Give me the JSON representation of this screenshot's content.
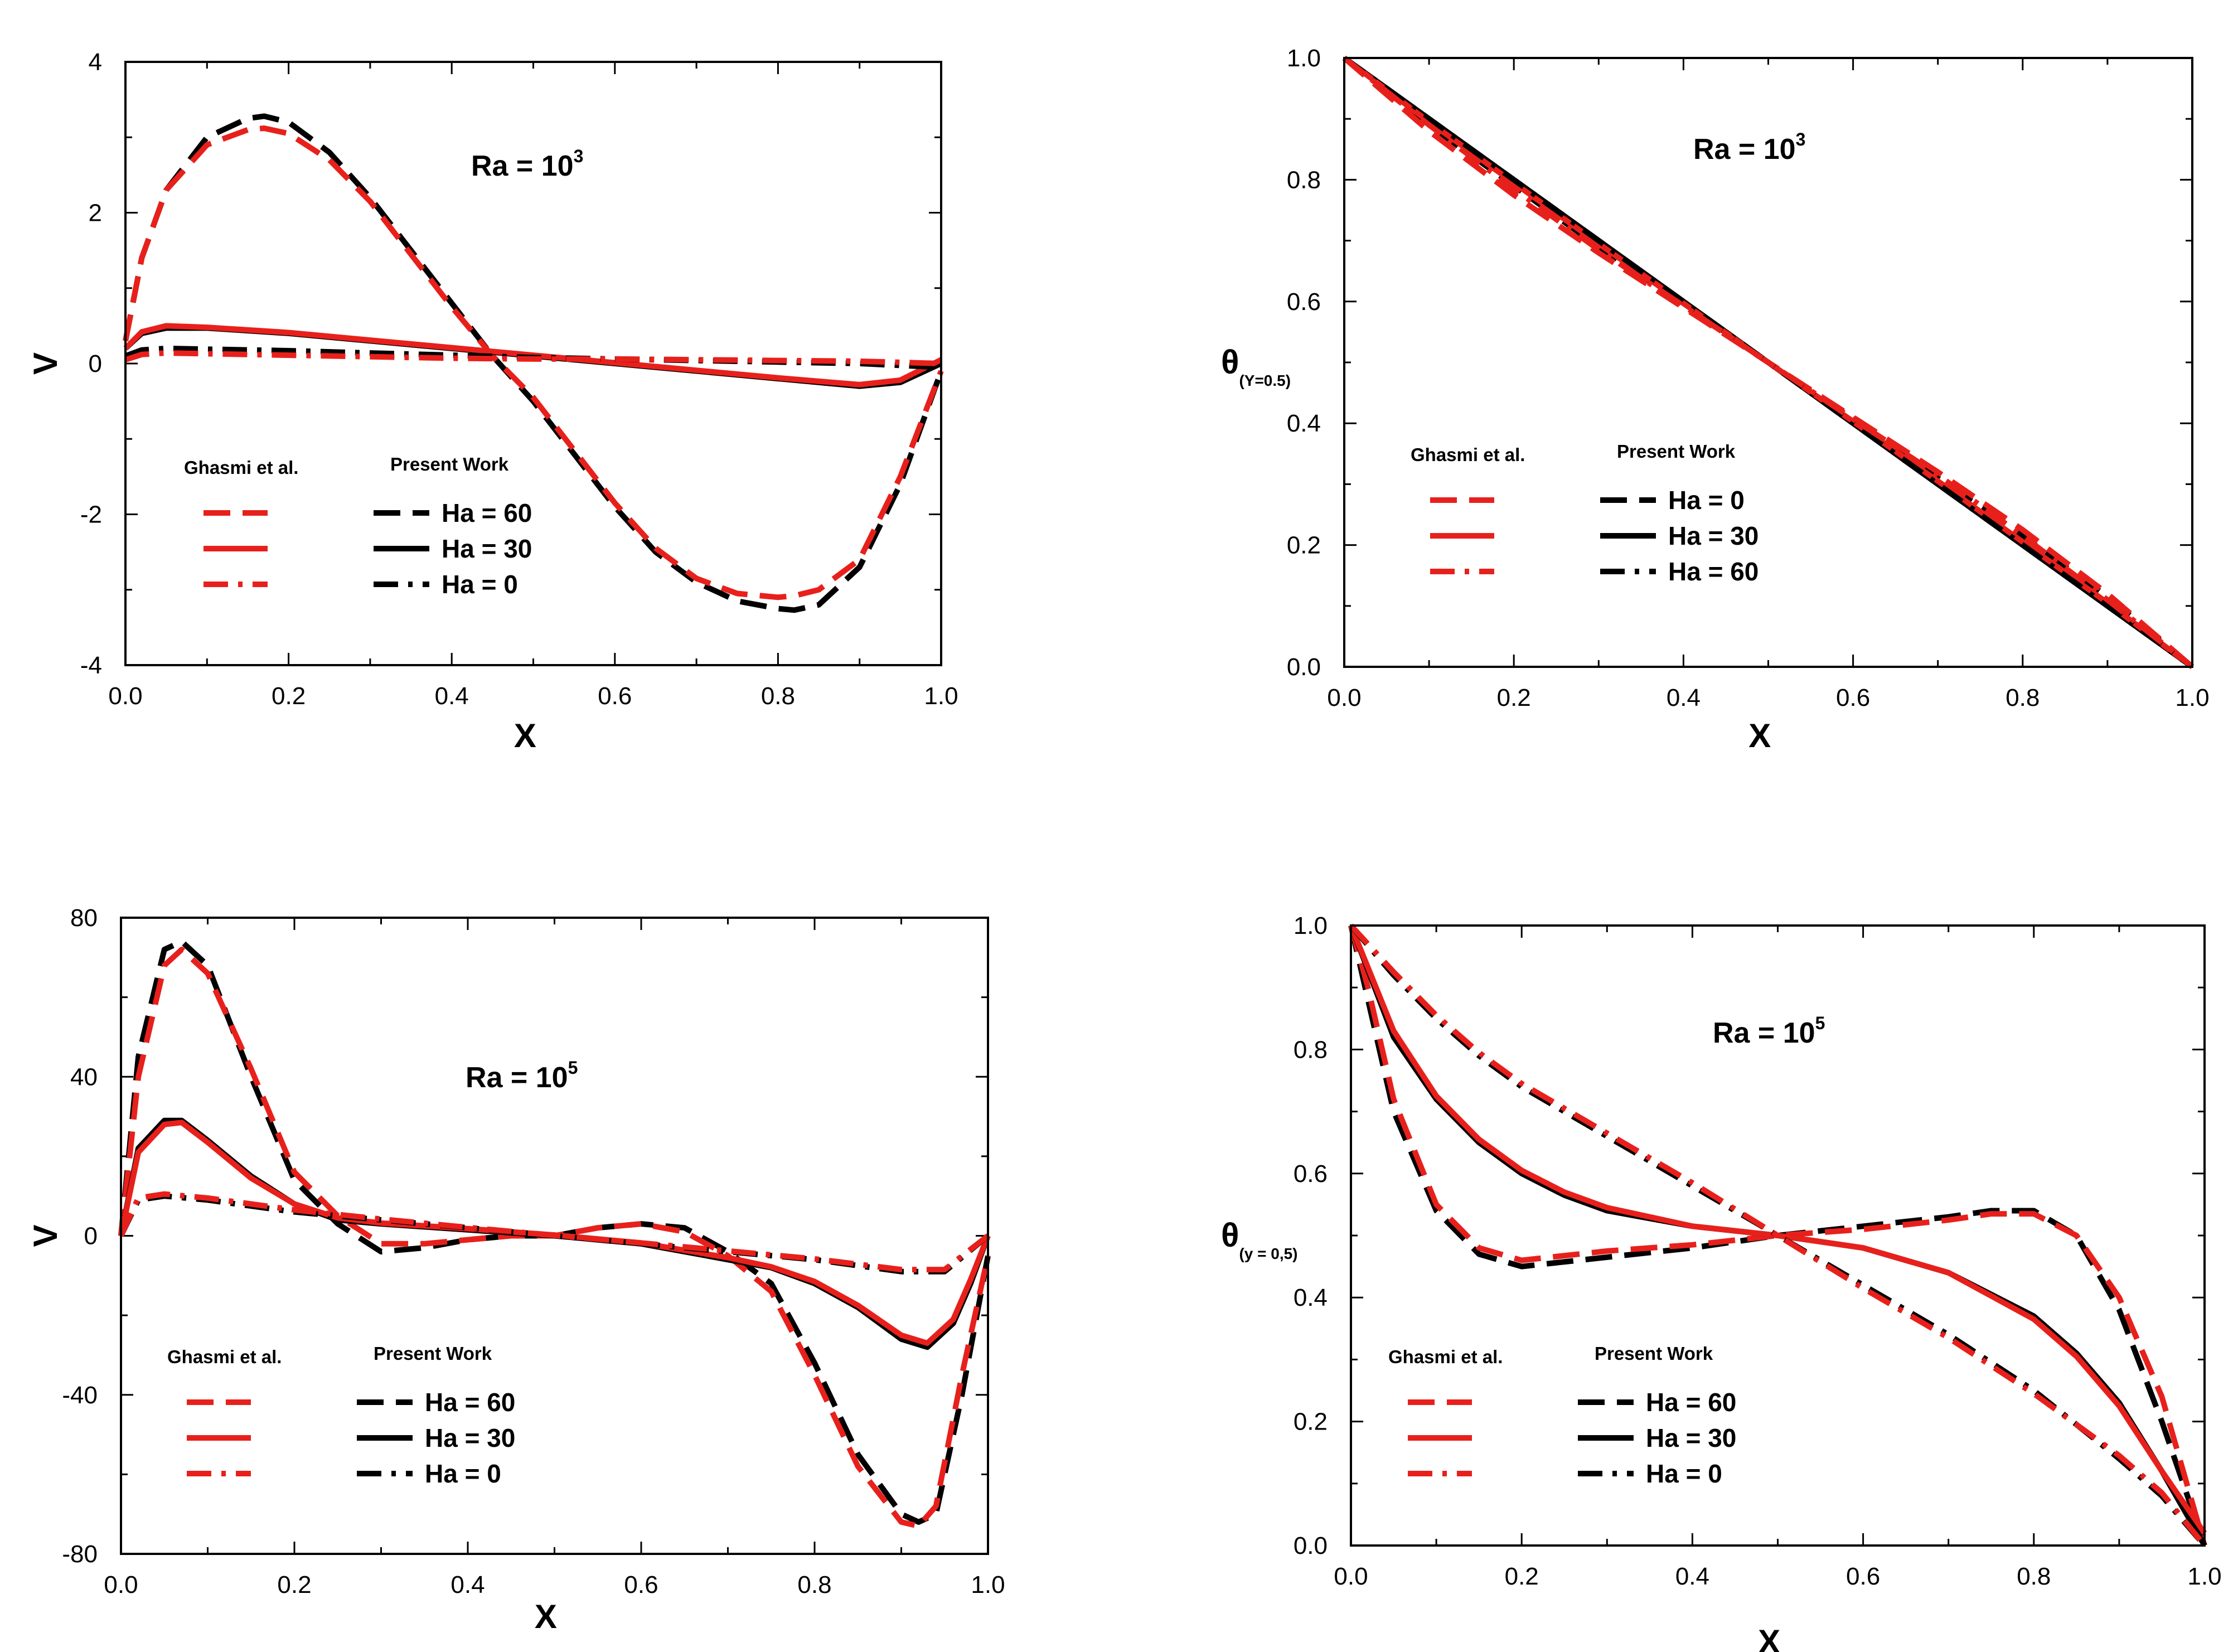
{
  "colors": {
    "reference": "#e8201c",
    "present": "#000000"
  },
  "chart_data": [
    {
      "id": "v_ra1e3",
      "type": "line",
      "annotation": {
        "base": "Ra = 10",
        "exp": "3"
      },
      "xlabel": "X",
      "ylabel": "V",
      "xlim": [
        0,
        1
      ],
      "ylim": [
        -4,
        4
      ],
      "xticks": [
        "0.0",
        "0.2",
        "0.4",
        "0.6",
        "0.8",
        "1.0"
      ],
      "yticks": [
        "-4",
        "-2",
        "0",
        "2",
        "4"
      ],
      "legend": {
        "ref_title": "Ghasmi et al.",
        "present_title": "Present Work",
        "entries": [
          "Ha = 60",
          "Ha = 30",
          "Ha = 0"
        ],
        "styles": [
          "dash",
          "solid",
          "dashdot"
        ]
      },
      "series": [
        {
          "name": "Ha = 60",
          "style": "dash",
          "x": [
            0,
            0.02,
            0.05,
            0.1,
            0.15,
            0.17,
            0.2,
            0.25,
            0.3,
            0.35,
            0.4,
            0.45,
            0.5,
            0.55,
            0.6,
            0.65,
            0.7,
            0.75,
            0.8,
            0.82,
            0.85,
            0.9,
            0.95,
            1.0
          ],
          "present": [
            0.3,
            1.4,
            2.3,
            3.0,
            3.25,
            3.28,
            3.2,
            2.8,
            2.2,
            1.5,
            0.8,
            0.1,
            -0.5,
            -1.2,
            -1.9,
            -2.5,
            -2.9,
            -3.15,
            -3.25,
            -3.27,
            -3.2,
            -2.7,
            -1.6,
            -0.1
          ],
          "reference": [
            0.3,
            1.4,
            2.3,
            2.9,
            3.1,
            3.12,
            3.05,
            2.7,
            2.15,
            1.45,
            0.75,
            0.1,
            -0.45,
            -1.15,
            -1.85,
            -2.45,
            -2.85,
            -3.05,
            -3.1,
            -3.08,
            -3.0,
            -2.6,
            -1.5,
            -0.1
          ]
        },
        {
          "name": "Ha = 30",
          "style": "solid",
          "x": [
            0,
            0.02,
            0.05,
            0.1,
            0.2,
            0.3,
            0.4,
            0.5,
            0.6,
            0.7,
            0.8,
            0.9,
            0.95,
            1.0
          ],
          "present": [
            0.2,
            0.4,
            0.47,
            0.47,
            0.4,
            0.3,
            0.2,
            0.1,
            0.0,
            -0.1,
            -0.2,
            -0.3,
            -0.25,
            0.0
          ],
          "reference": [
            0.2,
            0.42,
            0.5,
            0.48,
            0.41,
            0.31,
            0.21,
            0.11,
            0.01,
            -0.09,
            -0.19,
            -0.28,
            -0.22,
            0.05
          ]
        },
        {
          "name": "Ha = 0",
          "style": "dashdot",
          "x": [
            0,
            0.02,
            0.05,
            0.1,
            0.2,
            0.3,
            0.4,
            0.5,
            0.6,
            0.7,
            0.8,
            0.9,
            1.0
          ],
          "present": [
            0.1,
            0.18,
            0.2,
            0.19,
            0.17,
            0.14,
            0.11,
            0.08,
            0.06,
            0.04,
            0.02,
            0.0,
            -0.05
          ],
          "reference": [
            0.05,
            0.12,
            0.14,
            0.13,
            0.11,
            0.09,
            0.07,
            0.06,
            0.06,
            0.05,
            0.04,
            0.03,
            0.0
          ]
        }
      ]
    },
    {
      "id": "theta_ra1e3",
      "type": "line",
      "annotation": {
        "base": "Ra = 10",
        "exp": "3"
      },
      "xlabel": "X",
      "ylabel": "θ",
      "ylabel_sub": "(Y=0.5)",
      "xlim": [
        0,
        1
      ],
      "ylim": [
        0,
        1
      ],
      "xticks": [
        "0.0",
        "0.2",
        "0.4",
        "0.6",
        "0.8",
        "1.0"
      ],
      "yticks": [
        "0.0",
        "0.2",
        "0.4",
        "0.6",
        "0.8",
        "1.0"
      ],
      "legend": {
        "ref_title": "Ghasmi et al.",
        "present_title": "Present Work",
        "entries": [
          "Ha = 0",
          "Ha = 30",
          "Ha = 60"
        ],
        "styles": [
          "dash",
          "solid",
          "dashdot"
        ]
      },
      "series": [
        {
          "name": "Ha = 0",
          "style": "dash",
          "x": [
            0,
            0.1,
            0.2,
            0.3,
            0.4,
            0.5,
            0.6,
            0.7,
            0.8,
            0.9,
            1.0
          ],
          "present": [
            1.0,
            0.89,
            0.79,
            0.69,
            0.595,
            0.5,
            0.405,
            0.31,
            0.215,
            0.115,
            0.0
          ],
          "reference": [
            1.0,
            0.88,
            0.775,
            0.68,
            0.59,
            0.5,
            0.41,
            0.32,
            0.225,
            0.12,
            0.0
          ]
        },
        {
          "name": "Ha = 30",
          "style": "solid",
          "x": [
            0,
            0.1,
            0.2,
            0.3,
            0.4,
            0.5,
            0.6,
            0.7,
            0.8,
            0.9,
            1.0
          ],
          "present": [
            1.0,
            0.9,
            0.8,
            0.7,
            0.6,
            0.5,
            0.4,
            0.3,
            0.2,
            0.1,
            0.0
          ],
          "reference": [
            1.0,
            0.895,
            0.795,
            0.695,
            0.597,
            0.5,
            0.403,
            0.305,
            0.205,
            0.105,
            0.0
          ]
        },
        {
          "name": "Ha = 60",
          "style": "dashdot",
          "x": [
            0,
            0.1,
            0.2,
            0.3,
            0.4,
            0.5,
            0.6,
            0.7,
            0.8,
            0.9,
            1.0
          ],
          "present": [
            1.0,
            0.9,
            0.8,
            0.7,
            0.6,
            0.5,
            0.4,
            0.3,
            0.2,
            0.1,
            0.0
          ],
          "reference": [
            1.0,
            0.89,
            0.785,
            0.685,
            0.593,
            0.5,
            0.407,
            0.315,
            0.215,
            0.11,
            0.0
          ]
        }
      ]
    },
    {
      "id": "v_ra1e5",
      "type": "line",
      "annotation": {
        "base": "Ra = 10",
        "exp": "5"
      },
      "xlabel": "X",
      "ylabel": "V",
      "xlim": [
        0,
        1
      ],
      "ylim": [
        -80,
        80
      ],
      "xticks": [
        "0.0",
        "0.2",
        "0.4",
        "0.6",
        "0.8",
        "1.0"
      ],
      "yticks": [
        "-80",
        "-40",
        "0",
        "40",
        "80"
      ],
      "legend": {
        "ref_title": "Ghasmi et al.",
        "present_title": "Present Work",
        "entries": [
          "Ha = 60",
          "Ha = 30",
          "Ha = 0"
        ],
        "styles": [
          "dash",
          "solid",
          "dashdot"
        ]
      },
      "series": [
        {
          "name": "Ha = 60",
          "style": "dash",
          "x": [
            0,
            0.02,
            0.05,
            0.07,
            0.1,
            0.15,
            0.2,
            0.25,
            0.3,
            0.35,
            0.4,
            0.45,
            0.5,
            0.55,
            0.6,
            0.65,
            0.7,
            0.75,
            0.8,
            0.85,
            0.9,
            0.92,
            0.94,
            0.97,
            1.0
          ],
          "present": [
            0,
            45,
            72,
            74,
            68,
            40,
            14,
            3,
            -4,
            -3,
            -1,
            0,
            0,
            2,
            3,
            2,
            -4,
            -12,
            -32,
            -55,
            -70,
            -72,
            -70,
            -40,
            -5
          ],
          "reference": [
            0,
            40,
            68,
            72,
            66,
            42,
            16,
            5,
            -2,
            -2,
            -1,
            0,
            0,
            2,
            3,
            1,
            -5,
            -14,
            -35,
            -58,
            -72,
            -73,
            -68,
            -35,
            -5
          ]
        },
        {
          "name": "Ha = 30",
          "style": "solid",
          "x": [
            0,
            0.02,
            0.05,
            0.07,
            0.1,
            0.15,
            0.2,
            0.25,
            0.3,
            0.4,
            0.5,
            0.6,
            0.7,
            0.75,
            0.8,
            0.85,
            0.9,
            0.93,
            0.96,
            0.98,
            1.0
          ],
          "present": [
            0,
            22,
            29,
            29,
            24,
            15,
            8,
            4,
            3,
            1.5,
            0,
            -2,
            -6,
            -8,
            -12,
            -18,
            -26,
            -28,
            -22,
            -12,
            0
          ],
          "reference": [
            0,
            21,
            28,
            28.5,
            23.5,
            14.5,
            8,
            4.5,
            3.2,
            1.8,
            0.2,
            -1.8,
            -5.5,
            -7.8,
            -11.5,
            -17.5,
            -25,
            -27,
            -21,
            -11,
            0
          ]
        },
        {
          "name": "Ha = 0",
          "style": "dashdot",
          "x": [
            0,
            0.02,
            0.05,
            0.1,
            0.2,
            0.3,
            0.4,
            0.5,
            0.6,
            0.7,
            0.8,
            0.9,
            0.95,
            1.0
          ],
          "present": [
            0,
            9,
            10,
            9,
            6,
            4,
            2,
            0,
            -2,
            -4,
            -6,
            -9,
            -9,
            0
          ],
          "reference": [
            0,
            9.5,
            10.5,
            9.5,
            6.5,
            4.2,
            2.1,
            0.1,
            -1.8,
            -3.8,
            -5.8,
            -8.5,
            -8.5,
            0
          ]
        }
      ]
    },
    {
      "id": "theta_ra1e5",
      "type": "line",
      "annotation": {
        "base": "Ra = 10",
        "exp": "5"
      },
      "xlabel": "X",
      "ylabel": "θ",
      "ylabel_sub": "(y = 0,5)",
      "xlim": [
        0,
        1
      ],
      "ylim": [
        0,
        1
      ],
      "xticks": [
        "0.0",
        "0.2",
        "0.4",
        "0.6",
        "0.8",
        "1.0"
      ],
      "yticks": [
        "0.0",
        "0.2",
        "0.4",
        "0.6",
        "0.8",
        "1.0"
      ],
      "legend": {
        "ref_title": "Ghasmi et al.",
        "present_title": "Present Work",
        "entries": [
          "Ha = 60",
          "Ha = 30",
          "Ha = 0"
        ],
        "styles": [
          "dash",
          "solid",
          "dashdot"
        ]
      },
      "series": [
        {
          "name": "Ha = 60",
          "style": "dash",
          "x": [
            0,
            0.02,
            0.05,
            0.1,
            0.15,
            0.2,
            0.3,
            0.4,
            0.5,
            0.6,
            0.7,
            0.75,
            0.8,
            0.85,
            0.9,
            0.95,
            1.0
          ],
          "present": [
            1.0,
            0.88,
            0.7,
            0.54,
            0.47,
            0.45,
            0.465,
            0.48,
            0.5,
            0.515,
            0.53,
            0.54,
            0.54,
            0.5,
            0.38,
            0.2,
            0.0
          ],
          "reference": [
            1.0,
            0.9,
            0.72,
            0.55,
            0.48,
            0.46,
            0.475,
            0.485,
            0.5,
            0.51,
            0.525,
            0.535,
            0.535,
            0.5,
            0.4,
            0.24,
            0.0
          ]
        },
        {
          "name": "Ha = 30",
          "style": "solid",
          "x": [
            0,
            0.05,
            0.1,
            0.15,
            0.2,
            0.25,
            0.3,
            0.4,
            0.5,
            0.6,
            0.7,
            0.8,
            0.85,
            0.9,
            0.95,
            1.0
          ],
          "present": [
            1.0,
            0.82,
            0.72,
            0.65,
            0.6,
            0.565,
            0.54,
            0.515,
            0.5,
            0.48,
            0.44,
            0.37,
            0.31,
            0.23,
            0.12,
            0.0
          ],
          "reference": [
            1.0,
            0.83,
            0.725,
            0.655,
            0.605,
            0.57,
            0.545,
            0.515,
            0.5,
            0.48,
            0.44,
            0.365,
            0.305,
            0.225,
            0.12,
            0.02
          ]
        },
        {
          "name": "Ha = 0",
          "style": "dashdot",
          "x": [
            0,
            0.05,
            0.1,
            0.15,
            0.2,
            0.3,
            0.4,
            0.5,
            0.6,
            0.7,
            0.8,
            0.9,
            0.95,
            1.0
          ],
          "present": [
            1.0,
            0.92,
            0.85,
            0.79,
            0.74,
            0.66,
            0.58,
            0.5,
            0.42,
            0.34,
            0.25,
            0.14,
            0.08,
            0.0
          ],
          "reference": [
            1.0,
            0.925,
            0.855,
            0.795,
            0.745,
            0.665,
            0.585,
            0.5,
            0.415,
            0.335,
            0.245,
            0.145,
            0.085,
            0.0
          ]
        }
      ]
    }
  ]
}
